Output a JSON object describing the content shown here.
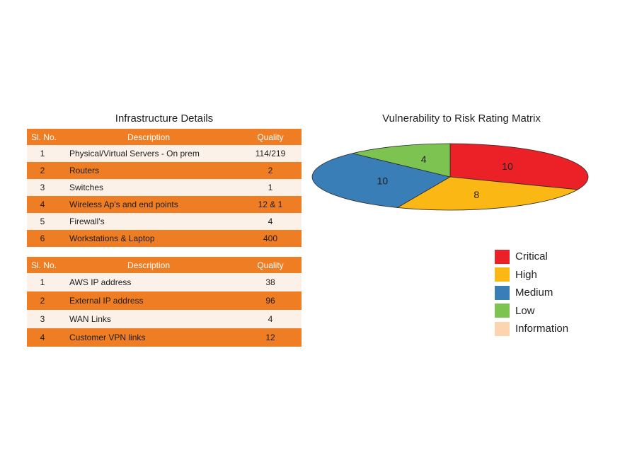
{
  "infrastructure": {
    "title": "Infrastructure Details",
    "table1": {
      "headers": [
        "Sl. No.",
        "Description",
        "Quality"
      ],
      "rows": [
        [
          "1",
          "Physical/Virtual Servers - On prem",
          "114/219"
        ],
        [
          "2",
          "Routers",
          "2"
        ],
        [
          "3",
          "Switches",
          "1"
        ],
        [
          "4",
          "Wireless Ap's and end points",
          "12 & 1"
        ],
        [
          "5",
          "Firewall's",
          "4"
        ],
        [
          "6",
          "Workstations & Laptop",
          "400"
        ]
      ]
    },
    "table2": {
      "headers": [
        "Sl. No.",
        "Description",
        "Quality"
      ],
      "rows": [
        [
          "1",
          "AWS IP address",
          "38"
        ],
        [
          "2",
          "External IP address",
          "96"
        ],
        [
          "3",
          "WAN Links",
          "4"
        ],
        [
          "4",
          "Customer VPN links",
          "12"
        ]
      ]
    }
  },
  "chart_data": {
    "type": "pie",
    "title": "Vulnerability to Risk Rating Matrix",
    "categories": [
      "Critical",
      "High",
      "Medium",
      "Low",
      "Information"
    ],
    "values": [
      10,
      8,
      10,
      4,
      0
    ],
    "colors": [
      "#ec2027",
      "#fbb714",
      "#3a7eb8",
      "#7dc352",
      "#fcd5b0"
    ],
    "legend_position": "bottom-right"
  }
}
